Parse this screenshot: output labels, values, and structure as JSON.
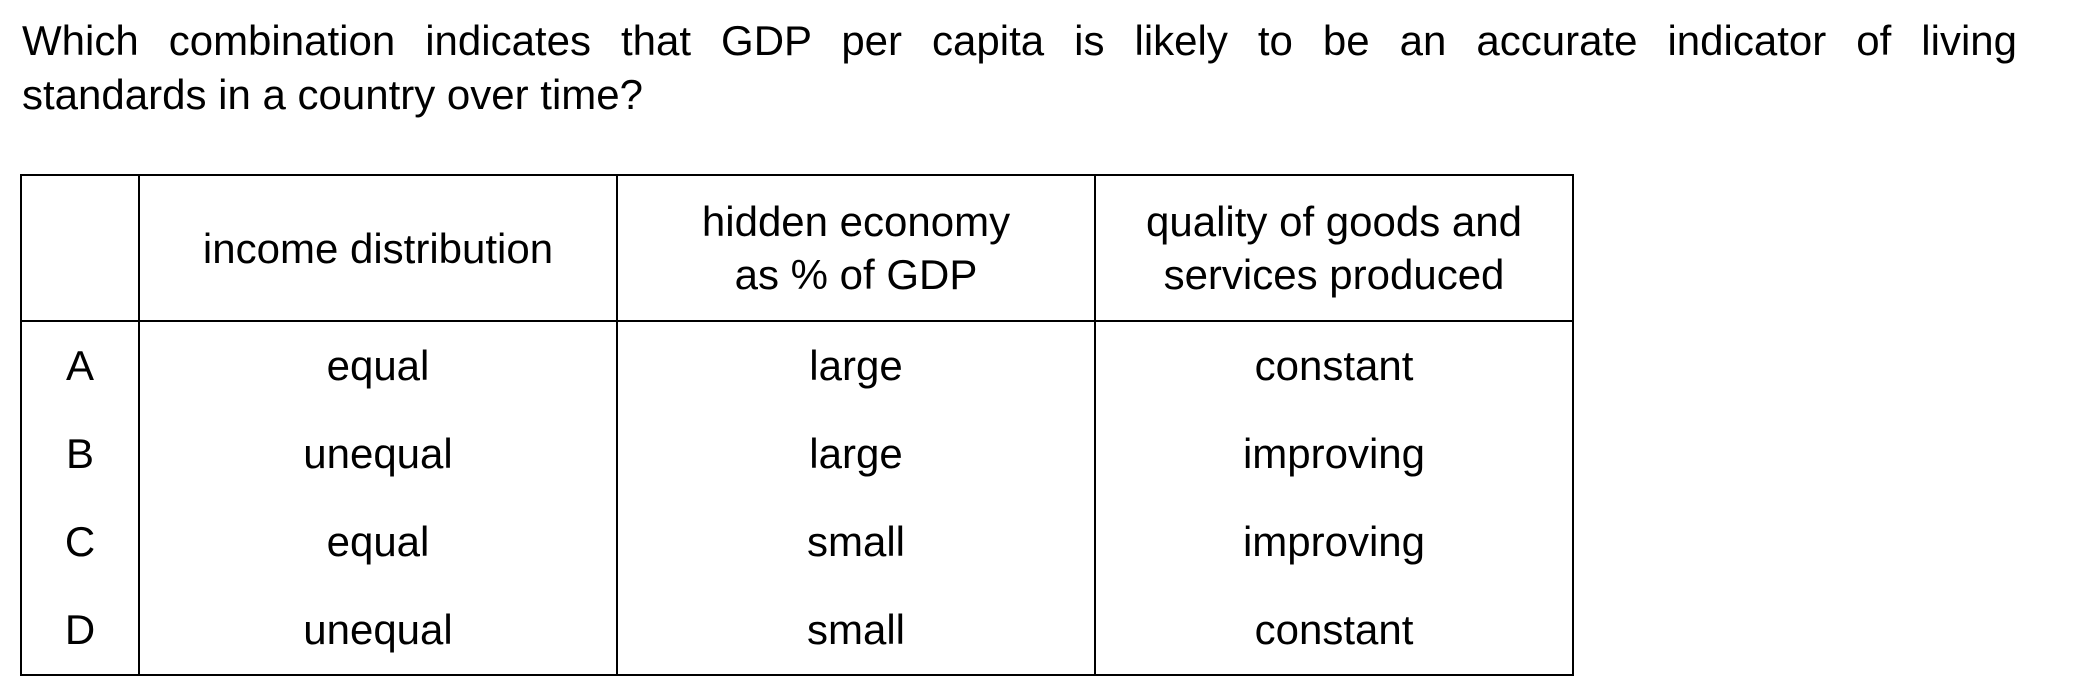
{
  "question": {
    "line1": "Which combination indicates that GDP per capita is likely to be an accurate indicator of living",
    "line2": "standards in a country over time?"
  },
  "table": {
    "headers": {
      "letter": "",
      "income_distribution": "income distribution",
      "hidden_economy_line1": "hidden economy",
      "hidden_economy_line2": "as % of GDP",
      "quality_line1": "quality of goods and",
      "quality_line2": "services produced"
    },
    "rows": [
      {
        "letter": "A",
        "income_distribution": "equal",
        "hidden_economy": "large",
        "quality": "constant"
      },
      {
        "letter": "B",
        "income_distribution": "unequal",
        "hidden_economy": "large",
        "quality": "improving"
      },
      {
        "letter": "C",
        "income_distribution": "equal",
        "hidden_economy": "small",
        "quality": "improving"
      },
      {
        "letter": "D",
        "income_distribution": "unequal",
        "hidden_economy": "small",
        "quality": "constant"
      }
    ]
  }
}
